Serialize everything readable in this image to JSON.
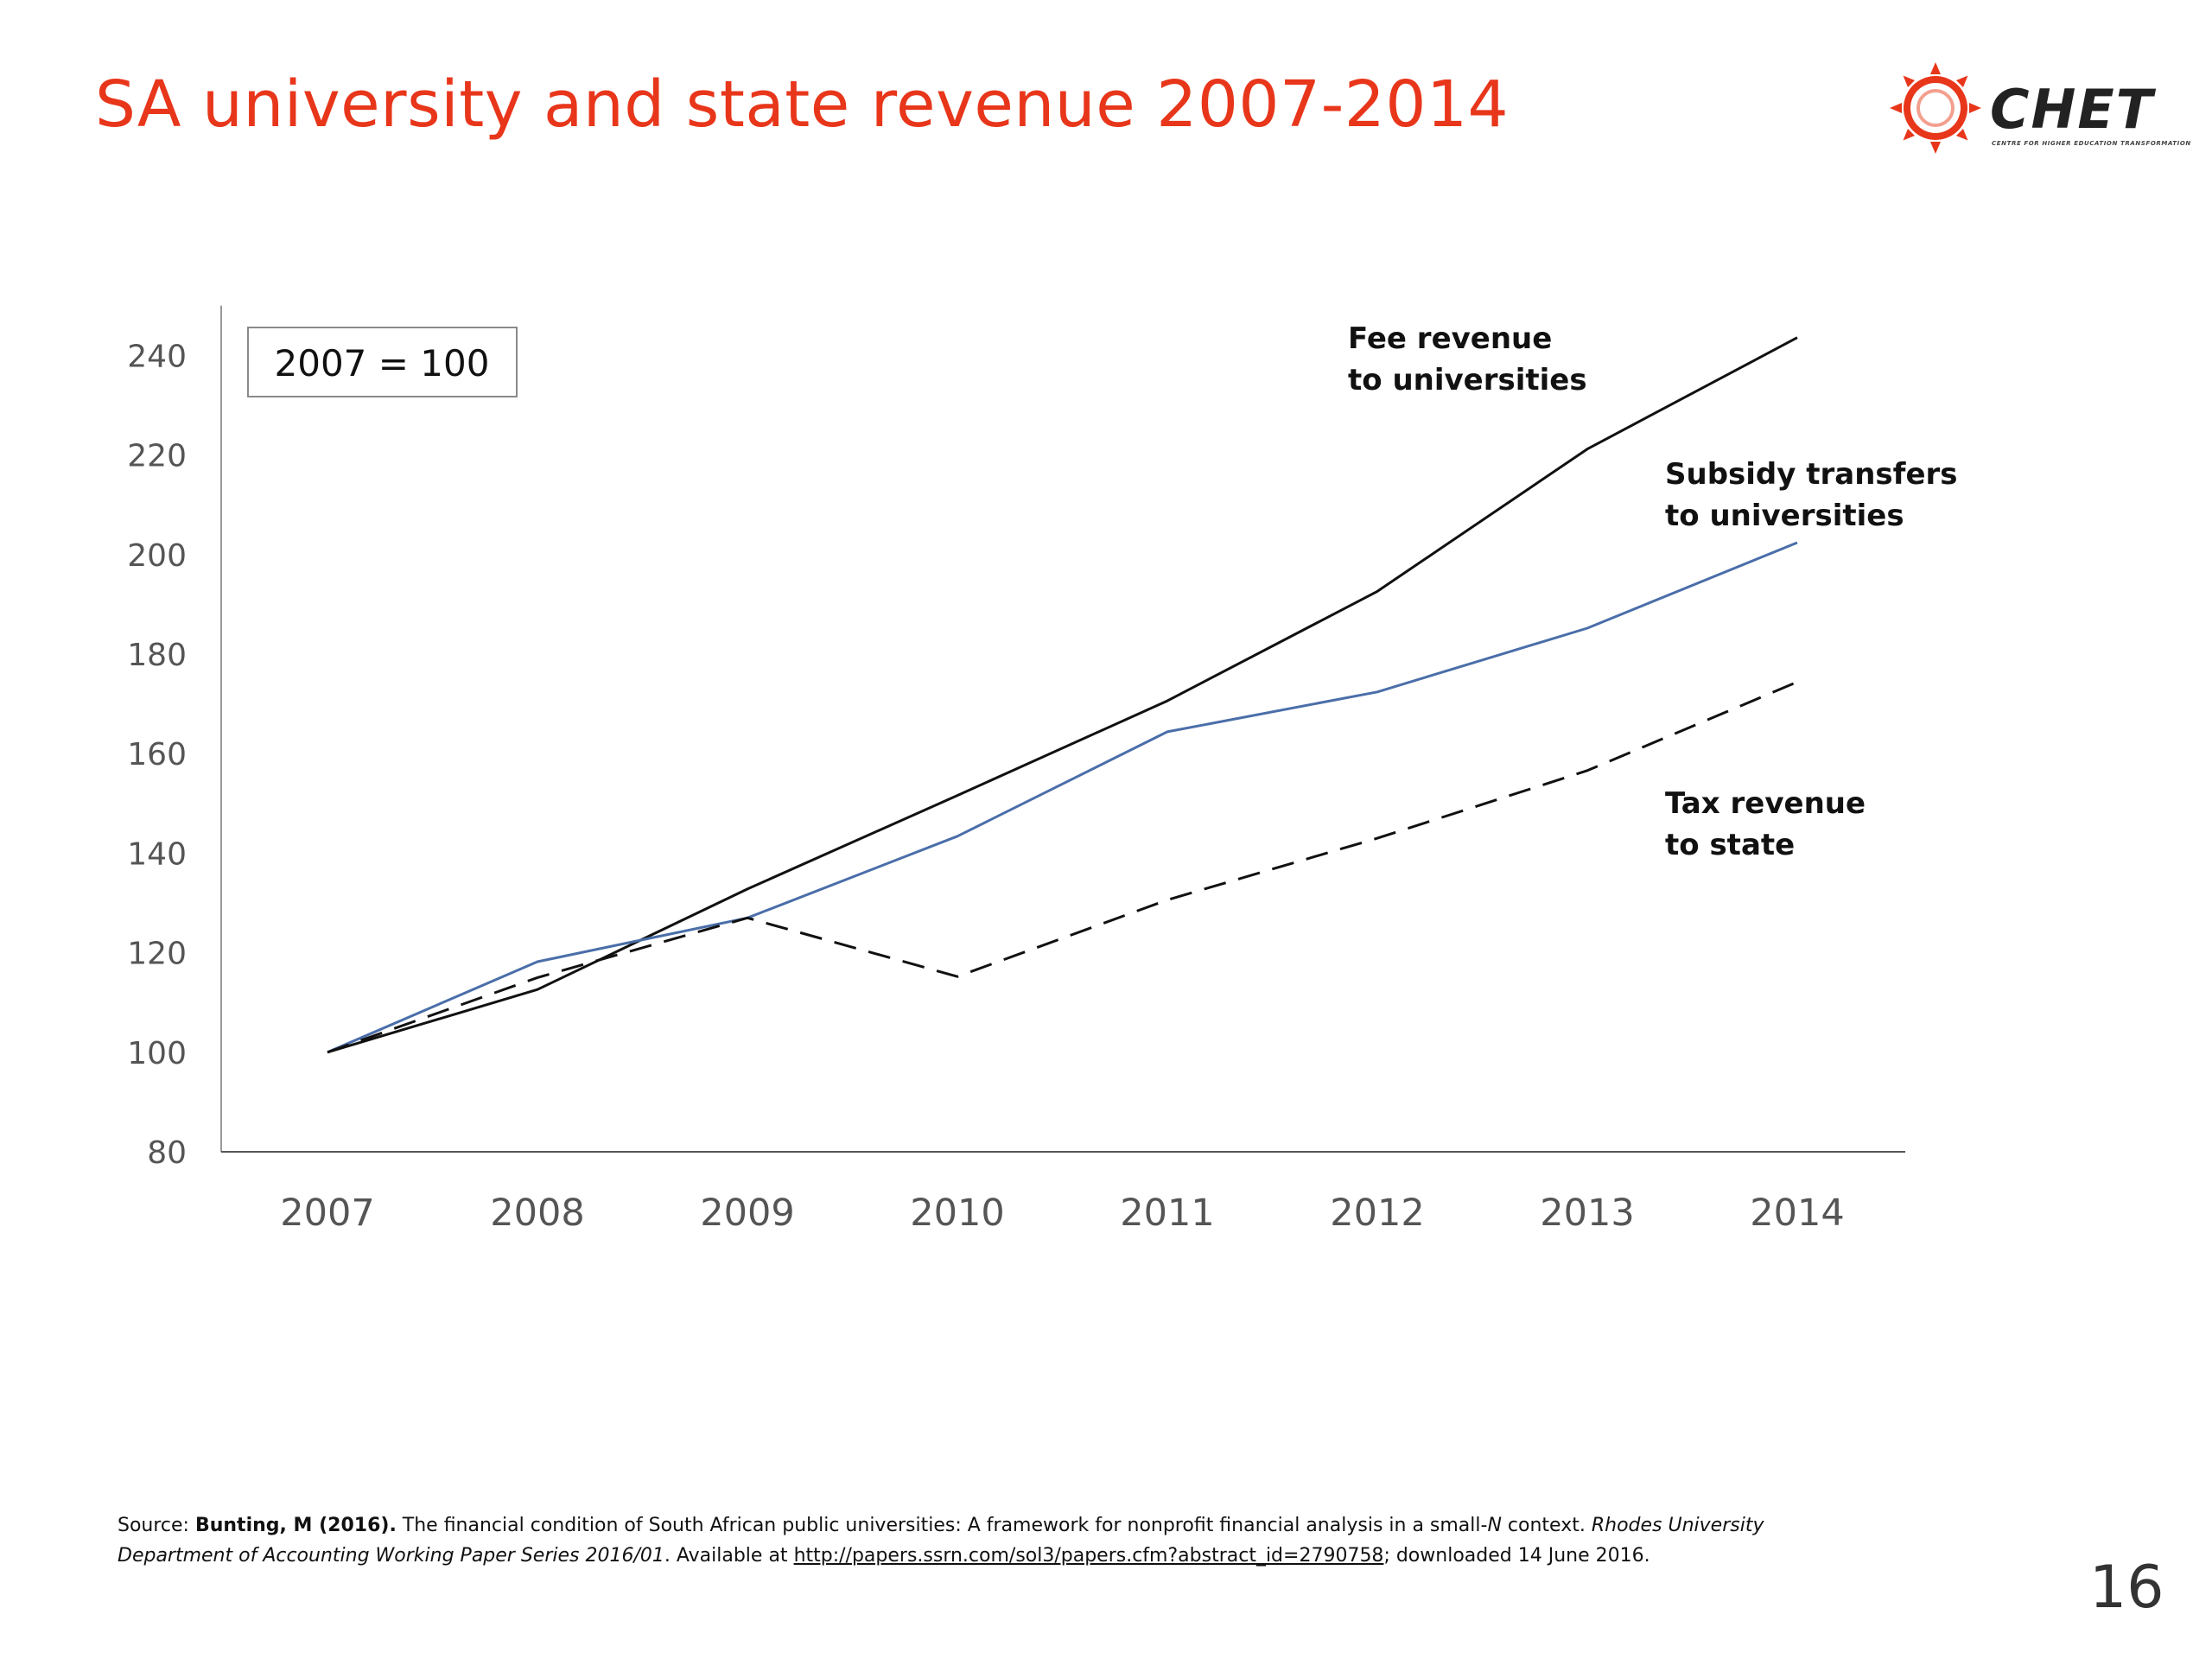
{
  "slide": {
    "title": "SA university and state revenue 2007-2014",
    "page_number": "16"
  },
  "logo": {
    "name": "CHET",
    "subtitle": "CENTRE FOR HIGHER EDUCATION TRANSFORMATION",
    "accent_color": "#e8361b"
  },
  "source": {
    "prefix": "Source: ",
    "author": "Bunting, M (2016).",
    "text1": " The financial condition of South African public universities: A framework for nonprofit financial analysis in a small-",
    "n": "N",
    "text2": " context. ",
    "series": "Rhodes University Department of Accounting Working Paper Series 2016/01",
    "text3": ". Available at ",
    "link": "http://papers.ssrn.com/sol3/papers.cfm?abstract_id=2790758",
    "text4": "; downloaded 14 June 2016."
  },
  "chart_data": {
    "type": "line",
    "title": "",
    "xlabel": "",
    "ylabel": "",
    "index_note": "2007 = 100",
    "x": [
      "2007",
      "2008",
      "2009",
      "2010",
      "2011",
      "2012",
      "2013",
      "2014"
    ],
    "ylim": [
      80,
      250
    ],
    "yticks": [
      80,
      100,
      120,
      140,
      160,
      180,
      200,
      220,
      240
    ],
    "grid": false,
    "series": [
      {
        "name": "Fee revenue to universities",
        "label_lines": [
          "Fee revenue",
          "to universities"
        ],
        "style": "solid",
        "color": "#111111",
        "values": [
          100,
          112.6,
          132.8,
          151.6,
          170.6,
          192.6,
          221.2,
          243.6
        ]
      },
      {
        "name": "Subsidy transfers to universities",
        "label_lines": [
          "Subsidy transfers",
          "to universities"
        ],
        "style": "solid",
        "color": "#4a6ea9",
        "values": [
          100,
          118.2,
          127,
          143.4,
          164.4,
          172.4,
          185.2,
          202.4
        ]
      },
      {
        "name": "Tax revenue to state",
        "label_lines": [
          "Tax revenue",
          "to state"
        ],
        "style": "dashed",
        "color": "#111111",
        "values": [
          100,
          115,
          127,
          115.2,
          130.6,
          143,
          156.6,
          174.4
        ]
      }
    ]
  }
}
